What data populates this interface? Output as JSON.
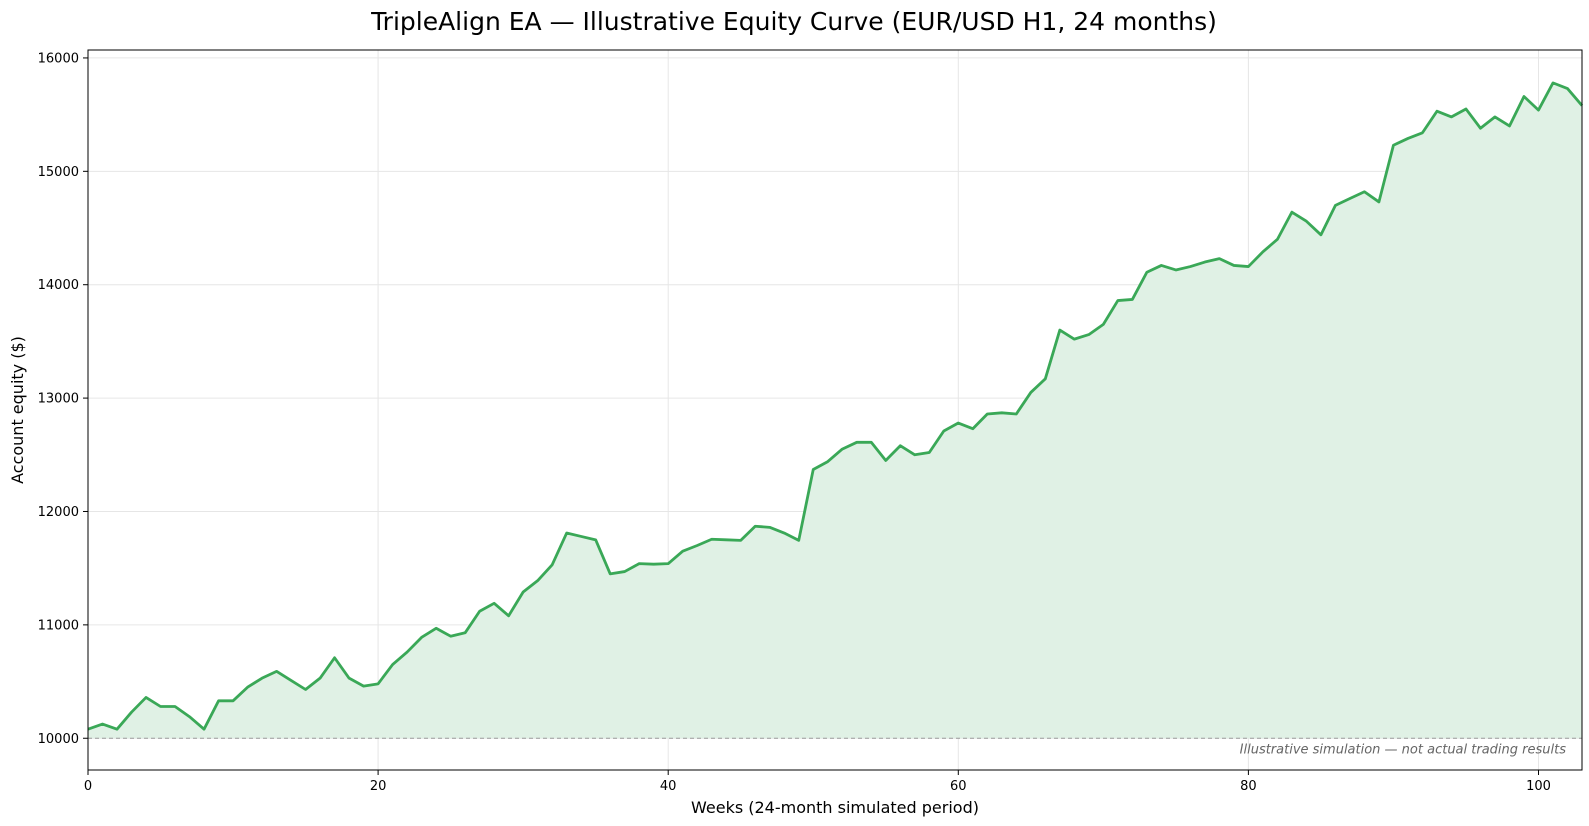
{
  "chart_data": {
    "type": "area",
    "title": "TripleAlign EA — Illustrative Equity Curve (EUR/USD H1, 24 months)",
    "xlabel": "Weeks (24-month simulated period)",
    "ylabel": "Account equity ($)",
    "xlim": [
      0,
      103
    ],
    "ylim": [
      9720,
      16070
    ],
    "x_ticks": [
      0,
      20,
      40,
      60,
      80,
      100
    ],
    "y_ticks": [
      10000,
      11000,
      12000,
      13000,
      14000,
      15000,
      16000
    ],
    "grid": true,
    "baseline": 10000,
    "annotation": "Illustrative simulation — not actual trading results",
    "colors": {
      "line": "#3aa857",
      "fill": "#e0f1e5",
      "baseline": "#999999",
      "grid": "#e6e6e6"
    },
    "series": [
      {
        "x": [
          0,
          1,
          2,
          3,
          4,
          5,
          6,
          7,
          8,
          9,
          10,
          11,
          12,
          13,
          14,
          15,
          16,
          17,
          18,
          19,
          20,
          21,
          22,
          23,
          24,
          25,
          26,
          27,
          28,
          29,
          30,
          31,
          32,
          33,
          34,
          35,
          36,
          37,
          38,
          39,
          40,
          41,
          42,
          43,
          44,
          45,
          46,
          47,
          48,
          49,
          50,
          51,
          52,
          53,
          54,
          55,
          56,
          57,
          58,
          59,
          60,
          61,
          62,
          63,
          64,
          65,
          66,
          67,
          68,
          69,
          70,
          71,
          72,
          73,
          74,
          75,
          76,
          77,
          78,
          79,
          80,
          81,
          82,
          83,
          84,
          85,
          86,
          87,
          88,
          89,
          90,
          91,
          92,
          93,
          94,
          95,
          96,
          97,
          98,
          99,
          100,
          101,
          102,
          103
        ],
        "values": [
          10080,
          10125,
          10080,
          10230,
          10360,
          10280,
          10280,
          10190,
          10080,
          10330,
          10330,
          10450,
          10530,
          10590,
          10510,
          10430,
          10530,
          10710,
          10530,
          10460,
          10480,
          10650,
          10760,
          10890,
          10970,
          10900,
          10930,
          11120,
          11190,
          11080,
          11290,
          11390,
          11530,
          11810,
          11780,
          11750,
          11450,
          11470,
          11540,
          11535,
          11540,
          11650,
          11700,
          11755,
          11750,
          11745,
          11870,
          11860,
          11810,
          11745,
          12370,
          12440,
          12550,
          12610,
          12610,
          12450,
          12580,
          12500,
          12520,
          12710,
          12780,
          12730,
          12860,
          12870,
          12860,
          13050,
          13170,
          13600,
          13520,
          13560,
          13650,
          13860,
          13870,
          14110,
          14170,
          14130,
          14160,
          14200,
          14230,
          14170,
          14160,
          14290,
          14400,
          14640,
          14560,
          14440,
          14700,
          14760,
          14820,
          14730,
          15230,
          15290,
          15340,
          15530,
          15480,
          15550,
          15380,
          15480,
          15400,
          15660,
          15540,
          15780,
          15730,
          15580
        ]
      }
    ]
  }
}
